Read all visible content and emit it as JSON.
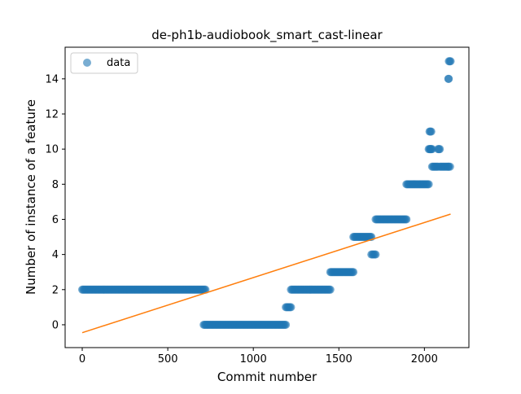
{
  "chart_data": {
    "type": "scatter",
    "title": "de-ph1b-audiobook_smart_cast-linear",
    "xlabel": "Commit number",
    "ylabel": "Number of instance of a feature",
    "xlim": [
      -100,
      2260
    ],
    "ylim": [
      -1.3,
      15.8
    ],
    "xticks": [
      0,
      500,
      1000,
      1500,
      2000
    ],
    "yticks": [
      0,
      2,
      4,
      6,
      8,
      10,
      12,
      14
    ],
    "grid": false,
    "legend": {
      "placement": "upper-left",
      "entries": [
        "data"
      ]
    },
    "colors": {
      "data": "#1f77b4",
      "fit": "#ff7f0e"
    },
    "series": [
      {
        "name": "data",
        "kind": "scatter",
        "segments": [
          {
            "x_start": 0,
            "x_end": 720,
            "y": 2
          },
          {
            "x_start": 710,
            "x_end": 1190,
            "y": 0
          },
          {
            "x_start": 1190,
            "x_end": 1220,
            "y": 1
          },
          {
            "x_start": 1220,
            "x_end": 1450,
            "y": 2
          },
          {
            "x_start": 1450,
            "x_end": 1585,
            "y": 3
          },
          {
            "x_start": 1585,
            "x_end": 1690,
            "y": 5
          },
          {
            "x_start": 1690,
            "x_end": 1715,
            "y": 4
          },
          {
            "x_start": 1715,
            "x_end": 1895,
            "y": 6
          },
          {
            "x_start": 1895,
            "x_end": 2025,
            "y": 8
          },
          {
            "x_start": 2025,
            "x_end": 2035,
            "y": 10
          },
          {
            "x_start": 2030,
            "x_end": 2040,
            "y": 11
          },
          {
            "x_start": 2035,
            "x_end": 2045,
            "y": 10
          },
          {
            "x_start": 2045,
            "x_end": 2080,
            "y": 9
          },
          {
            "x_start": 2080,
            "x_end": 2090,
            "y": 10
          },
          {
            "x_start": 2090,
            "x_end": 2140,
            "y": 9
          },
          {
            "x_start": 2140,
            "x_end": 2142,
            "y": 14
          },
          {
            "x_start": 2142,
            "x_end": 2150,
            "y": 9
          },
          {
            "x_start": 2143,
            "x_end": 2153,
            "y": 15
          }
        ]
      },
      {
        "kind": "line",
        "x": [
          0,
          2153
        ],
        "y": [
          -0.45,
          6.3
        ]
      }
    ]
  }
}
